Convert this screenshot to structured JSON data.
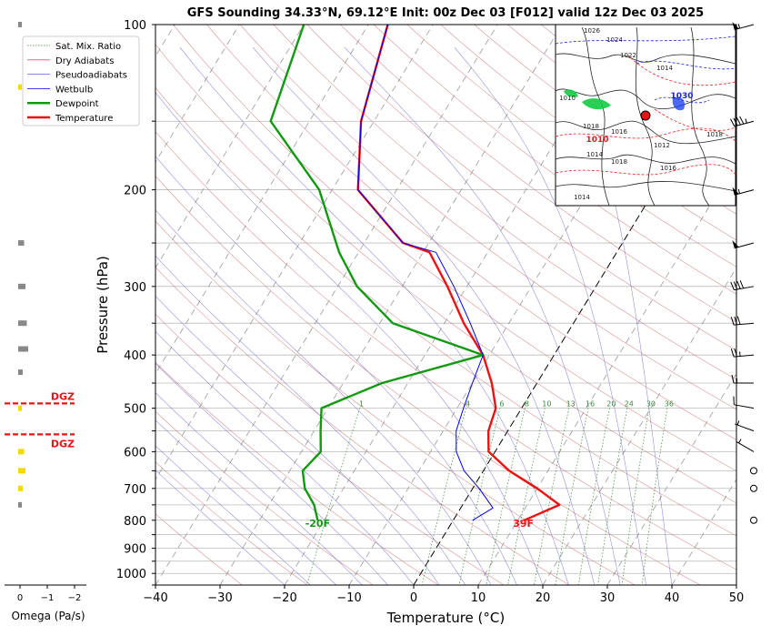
{
  "title": "GFS Sounding 34.33°N, 69.12°E Init: 00z Dec 03 [F012] valid 12z Dec 03 2025",
  "chart_data": {
    "type": "line",
    "subtype": "skew-t log-p",
    "xlabel": "Temperature (°C)",
    "ylabel": "Pressure (hPa)",
    "xlim": [
      -40,
      50
    ],
    "ylim": [
      1050,
      100
    ],
    "y_scale": "log",
    "x_ticks": [
      "−40",
      "−30",
      "−20",
      "−10",
      "0",
      "10",
      "20",
      "30",
      "40",
      "50"
    ],
    "x_tick_values": [
      -40,
      -30,
      -20,
      -10,
      0,
      10,
      20,
      30,
      40,
      50
    ],
    "y_ticks": [
      100,
      200,
      300,
      400,
      500,
      600,
      700,
      800,
      900,
      1000
    ],
    "y_tick_labels": [
      "100",
      "200",
      "300",
      "400",
      "500",
      "600",
      "700",
      "800",
      "900",
      "1000"
    ],
    "legend": {
      "placement": "top-left",
      "entries": [
        {
          "label": "Sat. Mix. Ratio",
          "color": "#3a8a3a",
          "style": "dotted"
        },
        {
          "label": "Dry Adiabats",
          "color": "#c86464",
          "style": "solid"
        },
        {
          "label": "Pseudoadiabats",
          "color": "#6464c8",
          "style": "solid"
        },
        {
          "label": "Wetbulb",
          "color": "#0000ee",
          "style": "solid"
        },
        {
          "label": "Dewpoint",
          "color": "#119911",
          "style": "solid"
        },
        {
          "label": "Temperature",
          "color": "#ee1111",
          "style": "solid"
        }
      ]
    },
    "series": [
      {
        "name": "Temperature",
        "color": "#ee1111",
        "points": [
          [
            11,
            800
          ],
          [
            15,
            750
          ],
          [
            10,
            700
          ],
          [
            4,
            650
          ],
          [
            -1,
            600
          ],
          [
            -3,
            550
          ],
          [
            -4,
            500
          ],
          [
            -7,
            450
          ],
          [
            -11,
            400
          ],
          [
            -17,
            350
          ],
          [
            -23,
            300
          ],
          [
            -29,
            260
          ],
          [
            -34,
            250
          ],
          [
            -46,
            200
          ],
          [
            -52,
            150
          ],
          [
            -57,
            100
          ]
        ]
      },
      {
        "name": "Dewpoint",
        "color": "#119911",
        "points": [
          [
            -21,
            800
          ],
          [
            -23,
            750
          ],
          [
            -26,
            700
          ],
          [
            -28,
            650
          ],
          [
            -27,
            600
          ],
          [
            -29,
            550
          ],
          [
            -31,
            500
          ],
          [
            -24,
            450
          ],
          [
            -11,
            400
          ],
          [
            -28,
            350
          ],
          [
            -37,
            300
          ],
          [
            -43,
            260
          ],
          [
            -52,
            200
          ],
          [
            -66,
            150
          ],
          [
            -70,
            100
          ]
        ]
      },
      {
        "name": "Wetbulb",
        "color": "#0000ee",
        "points": [
          [
            3,
            800
          ],
          [
            5,
            760
          ],
          [
            1,
            700
          ],
          [
            -3,
            650
          ],
          [
            -6,
            600
          ],
          [
            -8,
            550
          ],
          [
            -9,
            500
          ],
          [
            -10,
            450
          ],
          [
            -11,
            400
          ],
          [
            -16,
            350
          ],
          [
            -22,
            300
          ],
          [
            -28,
            260
          ],
          [
            -34,
            250
          ],
          [
            -46,
            200
          ],
          [
            -52,
            150
          ],
          [
            -57,
            100
          ]
        ]
      }
    ],
    "mixing_ratio_labels": [
      "1",
      "4",
      "6",
      "8",
      "10",
      "13",
      "16",
      "20",
      "24",
      "30",
      "36"
    ],
    "mixing_ratio_values": [
      1,
      4,
      6,
      8,
      10,
      13,
      16,
      20,
      24,
      30,
      36
    ],
    "annotations": {
      "surface_dewpoint": "-20F",
      "surface_temperature": "39F"
    },
    "winds": [
      {
        "p": 100,
        "dir": 255,
        "spd": 55
      },
      {
        "p": 150,
        "dir": 255,
        "spd": 45
      },
      {
        "p": 200,
        "dir": 255,
        "spd": 55
      },
      {
        "p": 250,
        "dir": 255,
        "spd": 50
      },
      {
        "p": 300,
        "dir": 260,
        "spd": 40
      },
      {
        "p": 350,
        "dir": 265,
        "spd": 30
      },
      {
        "p": 400,
        "dir": 265,
        "spd": 25
      },
      {
        "p": 450,
        "dir": 270,
        "spd": 15
      },
      {
        "p": 500,
        "dir": 280,
        "spd": 10
      },
      {
        "p": 550,
        "dir": 290,
        "spd": 5
      },
      {
        "p": 600,
        "dir": 300,
        "spd": 5
      },
      {
        "p": 650,
        "dir": 0,
        "spd": 0
      },
      {
        "p": 700,
        "dir": 0,
        "spd": 0
      },
      {
        "p": 800,
        "dir": 0,
        "spd": 0
      }
    ],
    "omega": {
      "xlabel": "Omega (Pa/s)",
      "ticks": [
        "0",
        "−1",
        "−2"
      ],
      "tick_values": [
        0,
        -1,
        -2
      ],
      "dgz_label": "DGZ",
      "dgz_bounds_hpa": [
        490,
        558
      ],
      "bars": [
        {
          "p": 100,
          "v": -0.05,
          "color": "#888888"
        },
        {
          "p": 130,
          "v": -0.05,
          "color": "#f5d800"
        },
        {
          "p": 250,
          "v": -0.15,
          "color": "#888888"
        },
        {
          "p": 300,
          "v": -0.2,
          "color": "#888888"
        },
        {
          "p": 350,
          "v": -0.25,
          "color": "#888888"
        },
        {
          "p": 390,
          "v": -0.3,
          "color": "#888888"
        },
        {
          "p": 430,
          "v": -0.1,
          "color": "#888888"
        },
        {
          "p": 500,
          "v": -0.05,
          "color": "#f5d800"
        },
        {
          "p": 600,
          "v": -0.15,
          "color": "#f5d800"
        },
        {
          "p": 650,
          "v": -0.2,
          "color": "#f5d800"
        },
        {
          "p": 700,
          "v": -0.1,
          "color": "#f5d800"
        },
        {
          "p": 750,
          "v": -0.05,
          "color": "#888888"
        }
      ]
    },
    "inset_map": {
      "placement": "top-right",
      "isobar_labels": [
        "1026",
        "1024",
        "1022",
        "1014",
        "1010",
        "1018",
        "1016",
        "1012",
        "1014",
        "1018",
        "1016",
        "1014",
        "1018"
      ],
      "high_label": "1030",
      "low_label": "1010"
    }
  }
}
